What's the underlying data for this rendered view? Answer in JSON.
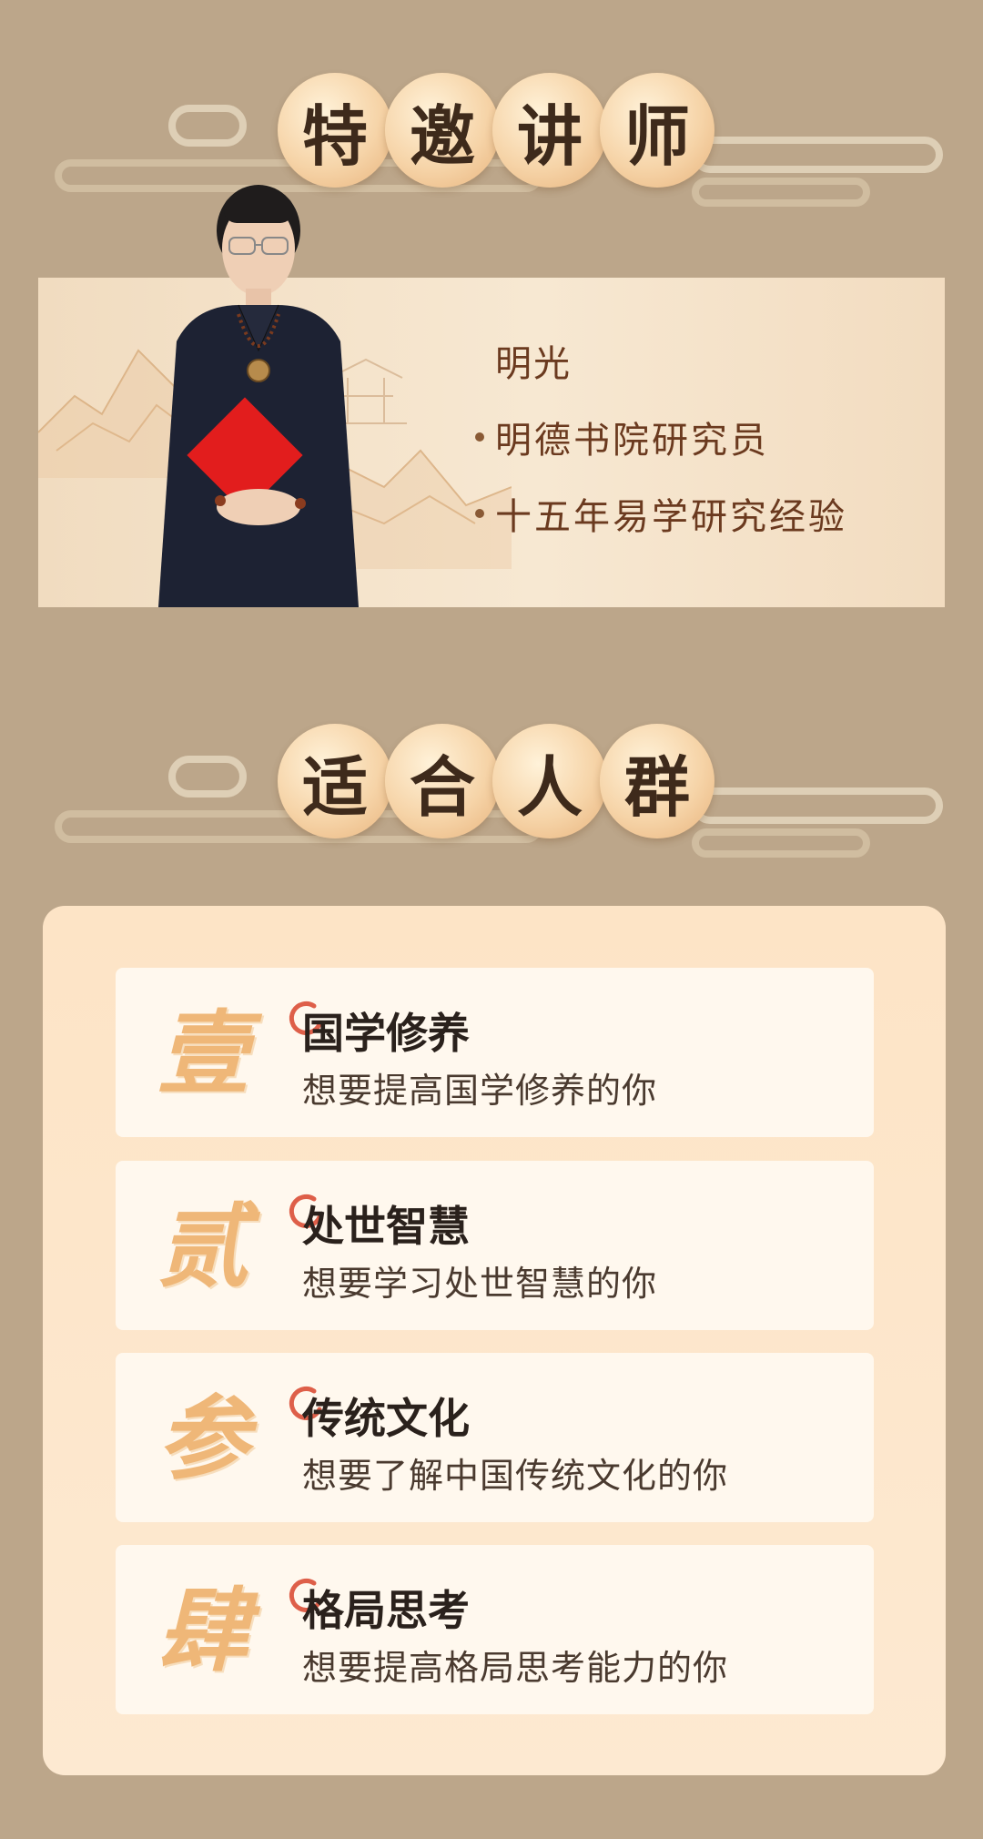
{
  "colors": {
    "background": "#bca68a",
    "title_circle": "#f6d4a8",
    "title_text": "#3e2a1b",
    "lecturer_text": "#6b3a1f",
    "panel": "#fde7cc",
    "card": "#fff8ee",
    "numeral": "#efb778",
    "accent_red": "#d8442c"
  },
  "lecturer_section": {
    "title_chars": [
      "特",
      "邀",
      "讲",
      "师"
    ],
    "name": "明光",
    "bullets": [
      "明德书院研究员",
      "十五年易学研究经验"
    ]
  },
  "audience_section": {
    "title_chars": [
      "适",
      "合",
      "人",
      "群"
    ],
    "items": [
      {
        "numeral": "壹",
        "title": "国学修养",
        "desc": "想要提高国学修养的你"
      },
      {
        "numeral": "贰",
        "title": "处世智慧",
        "desc": "想要学习处世智慧的你"
      },
      {
        "numeral": "参",
        "title": "传统文化",
        "desc": "想要了解中国传统文化的你"
      },
      {
        "numeral": "肆",
        "title": "格局思考",
        "desc": "想要提高格局思考能力的你"
      }
    ]
  }
}
